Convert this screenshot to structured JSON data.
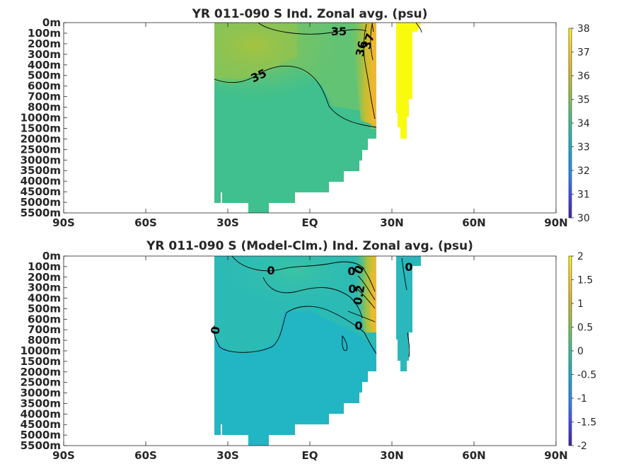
{
  "colors": {
    "cmap": [
      "#3e26a8",
      "#4743f8",
      "#2d85f9",
      "#1ba3d8",
      "#2bbab1",
      "#57c27f",
      "#9cc243",
      "#d9ba29",
      "#fbcc2e",
      "#f9fb0e"
    ]
  },
  "chart_data": [
    {
      "type": "heatmap",
      "title": "YR 011-090 S Ind. Zonal avg. (psu)",
      "x_ticks": [
        "90S",
        "60S",
        "30S",
        "EQ",
        "30N",
        "60N",
        "90N"
      ],
      "x_values": [
        -90,
        -60,
        -30,
        0,
        30,
        60,
        90
      ],
      "y_ticks": [
        "0m",
        "100m",
        "200m",
        "300m",
        "400m",
        "500m",
        "600m",
        "700m",
        "800m",
        "1000m",
        "1500m",
        "2000m",
        "2500m",
        "3000m",
        "3500m",
        "4000m",
        "4500m",
        "5000m",
        "5500m"
      ],
      "colorbar": {
        "min": 30,
        "max": 38,
        "ticks": [
          "30",
          "31",
          "32",
          "33",
          "34",
          "35",
          "36",
          "37",
          "38"
        ]
      },
      "contour_labels": [
        "35",
        "35",
        "36",
        "37"
      ],
      "xlim": [
        -90,
        90
      ]
    },
    {
      "type": "heatmap",
      "title": "YR 011-090 S (Model-Clm.) Ind. Zonal avg. (psu)",
      "x_ticks": [
        "90S",
        "60S",
        "30S",
        "EQ",
        "30N",
        "60N",
        "90N"
      ],
      "x_values": [
        -90,
        -60,
        -30,
        0,
        30,
        60,
        90
      ],
      "y_ticks": [
        "0m",
        "100m",
        "200m",
        "300m",
        "400m",
        "500m",
        "600m",
        "700m",
        "800m",
        "1000m",
        "1500m",
        "2000m",
        "2500m",
        "3000m",
        "3500m",
        "4000m",
        "4500m",
        "5000m",
        "5500m"
      ],
      "colorbar": {
        "min": -2,
        "max": 2,
        "ticks": [
          "-2",
          "-1.5",
          "-1",
          "-0.5",
          "0",
          "0.5",
          "1",
          "1.5",
          "2"
        ]
      },
      "contour_labels": [
        "0",
        "0",
        "0",
        "0",
        "0",
        "0",
        "0",
        "0.2"
      ],
      "xlim": [
        -90,
        90
      ]
    }
  ]
}
